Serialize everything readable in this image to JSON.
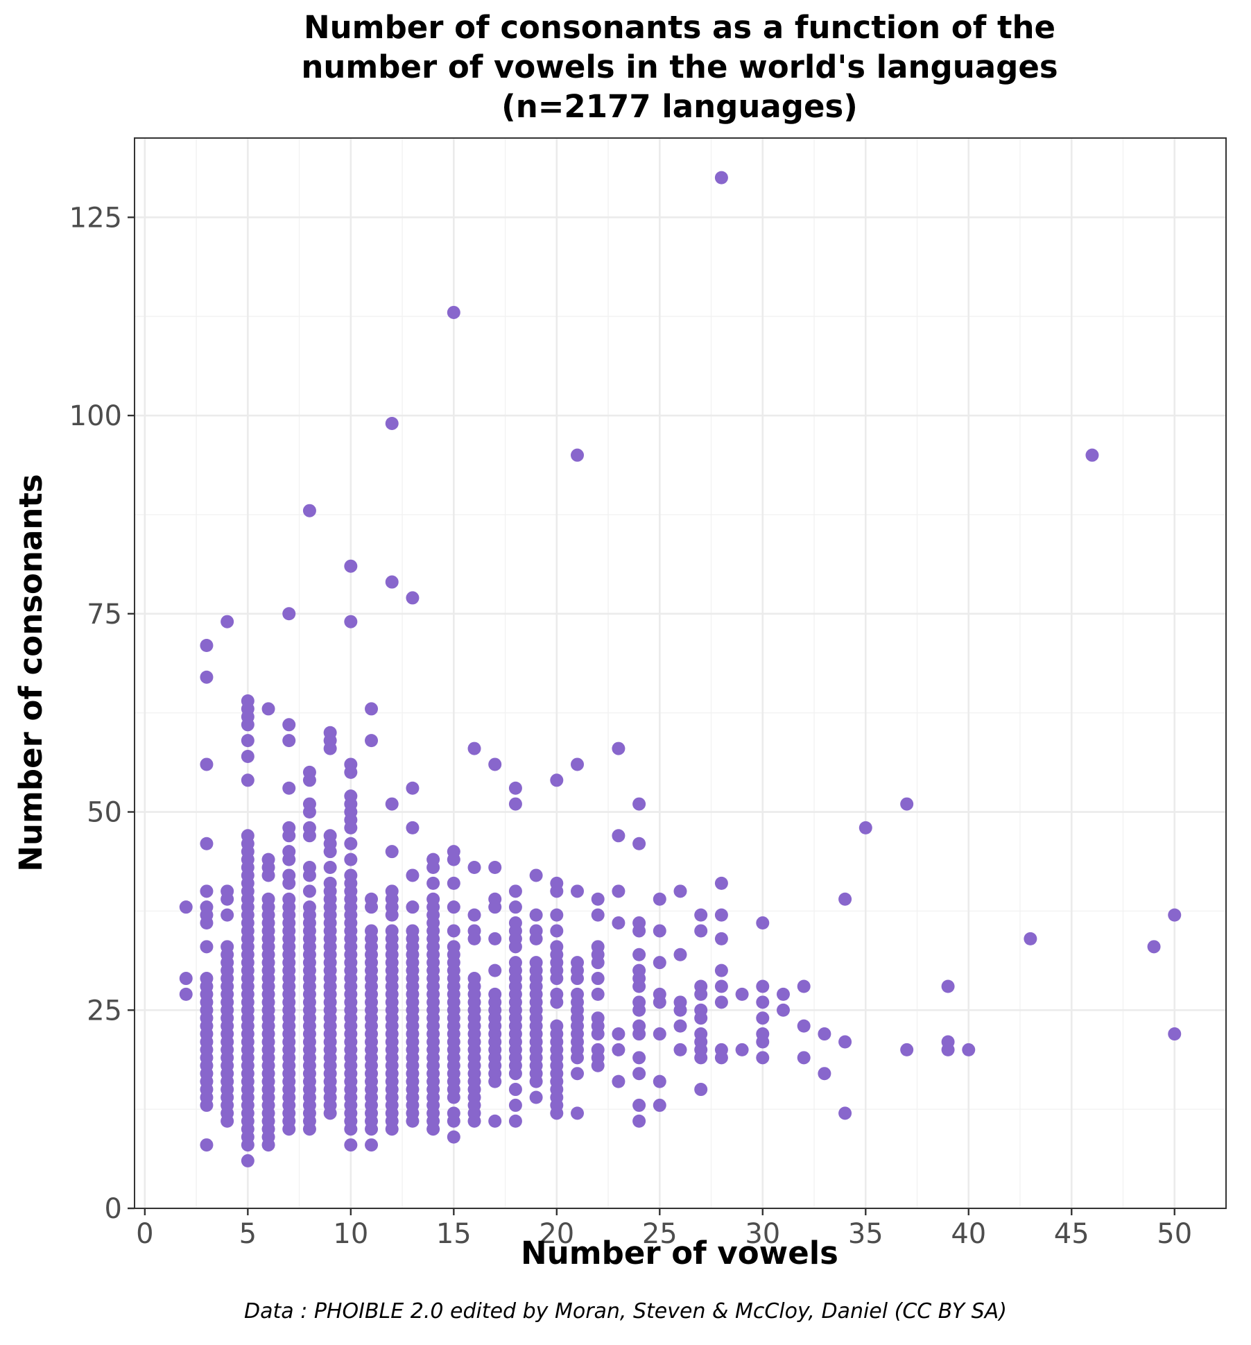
{
  "chart_data": {
    "type": "scatter",
    "title_lines": [
      "Number of consonants as a function of the",
      "number of vowels in the world's languages",
      "(n=2177 languages)"
    ],
    "xlabel": "Number of vowels",
    "ylabel": "Number of consonants",
    "caption": "Data : PHOIBLE 2.0 edited by Moran, Steven & McCloy, Daniel (CC BY SA)",
    "xlim": [
      -0.5,
      52.5
    ],
    "ylim": [
      0,
      135
    ],
    "x_ticks": [
      0,
      5,
      10,
      15,
      20,
      25,
      30,
      35,
      40,
      45,
      50
    ],
    "x_tick_labels": [
      "0",
      "5",
      "10",
      "15",
      "20",
      "25",
      "30",
      "35",
      "40",
      "45",
      "50"
    ],
    "y_ticks": [
      0,
      25,
      50,
      75,
      100,
      125
    ],
    "y_tick_labels": [
      "0",
      "25",
      "50",
      "75",
      "100",
      "125"
    ],
    "grid": true,
    "point_color": "#8866cc",
    "ranges": [
      {
        "x": 3,
        "y_from": 13,
        "y_to": 29
      },
      {
        "x": 4,
        "y_from": 11,
        "y_to": 33
      },
      {
        "x": 5,
        "y_from": 8,
        "y_to": 47
      },
      {
        "x": 6,
        "y_from": 10,
        "y_to": 39
      },
      {
        "x": 7,
        "y_from": 10,
        "y_to": 39
      },
      {
        "x": 8,
        "y_from": 10,
        "y_to": 38
      },
      {
        "x": 9,
        "y_from": 12,
        "y_to": 40
      },
      {
        "x": 10,
        "y_from": 10,
        "y_to": 42
      },
      {
        "x": 11,
        "y_from": 10,
        "y_to": 35
      },
      {
        "x": 12,
        "y_from": 10,
        "y_to": 35
      },
      {
        "x": 13,
        "y_from": 12,
        "y_to": 35
      },
      {
        "x": 14,
        "y_from": 12,
        "y_to": 39
      },
      {
        "x": 15,
        "y_from": 14,
        "y_to": 33
      },
      {
        "x": 16,
        "y_from": 11,
        "y_to": 29
      },
      {
        "x": 17,
        "y_from": 16,
        "y_to": 27
      },
      {
        "x": 18,
        "y_from": 17,
        "y_to": 31
      },
      {
        "x": 19,
        "y_from": 16,
        "y_to": 31
      },
      {
        "x": 20,
        "y_from": 12,
        "y_to": 23
      },
      {
        "x": 21,
        "y_from": 19,
        "y_to": 27
      }
    ],
    "points": [
      {
        "x": 2,
        "y": 38
      },
      {
        "x": 2,
        "y": 29
      },
      {
        "x": 2,
        "y": 27
      },
      {
        "x": 3,
        "y": 71
      },
      {
        "x": 3,
        "y": 67
      },
      {
        "x": 3,
        "y": 56
      },
      {
        "x": 3,
        "y": 46
      },
      {
        "x": 3,
        "y": 40
      },
      {
        "x": 3,
        "y": 38
      },
      {
        "x": 3,
        "y": 37
      },
      {
        "x": 3,
        "y": 36
      },
      {
        "x": 3,
        "y": 33
      },
      {
        "x": 3,
        "y": 8
      },
      {
        "x": 4,
        "y": 74
      },
      {
        "x": 4,
        "y": 40
      },
      {
        "x": 4,
        "y": 39
      },
      {
        "x": 4,
        "y": 37
      },
      {
        "x": 5,
        "y": 64
      },
      {
        "x": 5,
        "y": 63
      },
      {
        "x": 5,
        "y": 62
      },
      {
        "x": 5,
        "y": 61
      },
      {
        "x": 5,
        "y": 59
      },
      {
        "x": 5,
        "y": 57
      },
      {
        "x": 5,
        "y": 54
      },
      {
        "x": 5,
        "y": 6
      },
      {
        "x": 6,
        "y": 63
      },
      {
        "x": 6,
        "y": 44
      },
      {
        "x": 6,
        "y": 43
      },
      {
        "x": 6,
        "y": 42
      },
      {
        "x": 6,
        "y": 9
      },
      {
        "x": 6,
        "y": 8
      },
      {
        "x": 7,
        "y": 75
      },
      {
        "x": 7,
        "y": 61
      },
      {
        "x": 7,
        "y": 59
      },
      {
        "x": 7,
        "y": 53
      },
      {
        "x": 7,
        "y": 48
      },
      {
        "x": 7,
        "y": 47
      },
      {
        "x": 7,
        "y": 45
      },
      {
        "x": 7,
        "y": 44
      },
      {
        "x": 7,
        "y": 42
      },
      {
        "x": 7,
        "y": 41
      },
      {
        "x": 8,
        "y": 88
      },
      {
        "x": 8,
        "y": 55
      },
      {
        "x": 8,
        "y": 54
      },
      {
        "x": 8,
        "y": 51
      },
      {
        "x": 8,
        "y": 50
      },
      {
        "x": 8,
        "y": 48
      },
      {
        "x": 8,
        "y": 47
      },
      {
        "x": 8,
        "y": 43
      },
      {
        "x": 8,
        "y": 42
      },
      {
        "x": 8,
        "y": 40
      },
      {
        "x": 9,
        "y": 60
      },
      {
        "x": 9,
        "y": 59
      },
      {
        "x": 9,
        "y": 58
      },
      {
        "x": 9,
        "y": 47
      },
      {
        "x": 9,
        "y": 46
      },
      {
        "x": 9,
        "y": 45
      },
      {
        "x": 9,
        "y": 43
      },
      {
        "x": 9,
        "y": 41
      },
      {
        "x": 10,
        "y": 81
      },
      {
        "x": 10,
        "y": 74
      },
      {
        "x": 10,
        "y": 56
      },
      {
        "x": 10,
        "y": 55
      },
      {
        "x": 10,
        "y": 52
      },
      {
        "x": 10,
        "y": 51
      },
      {
        "x": 10,
        "y": 50
      },
      {
        "x": 10,
        "y": 49
      },
      {
        "x": 10,
        "y": 48
      },
      {
        "x": 10,
        "y": 46
      },
      {
        "x": 10,
        "y": 44
      },
      {
        "x": 10,
        "y": 8
      },
      {
        "x": 11,
        "y": 63
      },
      {
        "x": 11,
        "y": 59
      },
      {
        "x": 11,
        "y": 39
      },
      {
        "x": 11,
        "y": 38
      },
      {
        "x": 11,
        "y": 8
      },
      {
        "x": 12,
        "y": 99
      },
      {
        "x": 12,
        "y": 79
      },
      {
        "x": 12,
        "y": 51
      },
      {
        "x": 12,
        "y": 45
      },
      {
        "x": 12,
        "y": 40
      },
      {
        "x": 12,
        "y": 39
      },
      {
        "x": 12,
        "y": 38
      },
      {
        "x": 12,
        "y": 37
      },
      {
        "x": 13,
        "y": 77
      },
      {
        "x": 13,
        "y": 53
      },
      {
        "x": 13,
        "y": 48
      },
      {
        "x": 13,
        "y": 42
      },
      {
        "x": 13,
        "y": 38
      },
      {
        "x": 13,
        "y": 11
      },
      {
        "x": 14,
        "y": 44
      },
      {
        "x": 14,
        "y": 43
      },
      {
        "x": 14,
        "y": 41
      },
      {
        "x": 14,
        "y": 11
      },
      {
        "x": 14,
        "y": 10
      },
      {
        "x": 15,
        "y": 113
      },
      {
        "x": 15,
        "y": 45
      },
      {
        "x": 15,
        "y": 44
      },
      {
        "x": 15,
        "y": 41
      },
      {
        "x": 15,
        "y": 38
      },
      {
        "x": 15,
        "y": 35
      },
      {
        "x": 15,
        "y": 12
      },
      {
        "x": 15,
        "y": 11
      },
      {
        "x": 15,
        "y": 9
      },
      {
        "x": 16,
        "y": 58
      },
      {
        "x": 16,
        "y": 43
      },
      {
        "x": 16,
        "y": 37
      },
      {
        "x": 16,
        "y": 35
      },
      {
        "x": 16,
        "y": 34
      },
      {
        "x": 17,
        "y": 56
      },
      {
        "x": 17,
        "y": 43
      },
      {
        "x": 17,
        "y": 39
      },
      {
        "x": 17,
        "y": 38
      },
      {
        "x": 17,
        "y": 34
      },
      {
        "x": 17,
        "y": 30
      },
      {
        "x": 17,
        "y": 11
      },
      {
        "x": 18,
        "y": 53
      },
      {
        "x": 18,
        "y": 51
      },
      {
        "x": 18,
        "y": 40
      },
      {
        "x": 18,
        "y": 38
      },
      {
        "x": 18,
        "y": 36
      },
      {
        "x": 18,
        "y": 35
      },
      {
        "x": 18,
        "y": 34
      },
      {
        "x": 18,
        "y": 33
      },
      {
        "x": 18,
        "y": 15
      },
      {
        "x": 18,
        "y": 13
      },
      {
        "x": 18,
        "y": 11
      },
      {
        "x": 19,
        "y": 42
      },
      {
        "x": 19,
        "y": 37
      },
      {
        "x": 19,
        "y": 35
      },
      {
        "x": 19,
        "y": 34
      },
      {
        "x": 19,
        "y": 14
      },
      {
        "x": 20,
        "y": 54
      },
      {
        "x": 20,
        "y": 41
      },
      {
        "x": 20,
        "y": 40
      },
      {
        "x": 20,
        "y": 37
      },
      {
        "x": 20,
        "y": 35
      },
      {
        "x": 20,
        "y": 33
      },
      {
        "x": 20,
        "y": 32
      },
      {
        "x": 20,
        "y": 31
      },
      {
        "x": 20,
        "y": 30
      },
      {
        "x": 20,
        "y": 29
      },
      {
        "x": 20,
        "y": 27
      },
      {
        "x": 20,
        "y": 26
      },
      {
        "x": 21,
        "y": 95
      },
      {
        "x": 21,
        "y": 56
      },
      {
        "x": 21,
        "y": 40
      },
      {
        "x": 21,
        "y": 31
      },
      {
        "x": 21,
        "y": 30
      },
      {
        "x": 21,
        "y": 29
      },
      {
        "x": 21,
        "y": 17
      },
      {
        "x": 21,
        "y": 12
      },
      {
        "x": 22,
        "y": 39
      },
      {
        "x": 22,
        "y": 37
      },
      {
        "x": 22,
        "y": 33
      },
      {
        "x": 22,
        "y": 32
      },
      {
        "x": 22,
        "y": 31
      },
      {
        "x": 22,
        "y": 29
      },
      {
        "x": 22,
        "y": 27
      },
      {
        "x": 22,
        "y": 24
      },
      {
        "x": 22,
        "y": 23
      },
      {
        "x": 22,
        "y": 22
      },
      {
        "x": 22,
        "y": 20
      },
      {
        "x": 22,
        "y": 19
      },
      {
        "x": 22,
        "y": 18
      },
      {
        "x": 23,
        "y": 58
      },
      {
        "x": 23,
        "y": 47
      },
      {
        "x": 23,
        "y": 40
      },
      {
        "x": 23,
        "y": 36
      },
      {
        "x": 23,
        "y": 22
      },
      {
        "x": 23,
        "y": 20
      },
      {
        "x": 23,
        "y": 16
      },
      {
        "x": 24,
        "y": 51
      },
      {
        "x": 24,
        "y": 46
      },
      {
        "x": 24,
        "y": 36
      },
      {
        "x": 24,
        "y": 35
      },
      {
        "x": 24,
        "y": 32
      },
      {
        "x": 24,
        "y": 30
      },
      {
        "x": 24,
        "y": 29
      },
      {
        "x": 24,
        "y": 28
      },
      {
        "x": 24,
        "y": 26
      },
      {
        "x": 24,
        "y": 25
      },
      {
        "x": 24,
        "y": 23
      },
      {
        "x": 24,
        "y": 22
      },
      {
        "x": 24,
        "y": 19
      },
      {
        "x": 24,
        "y": 17
      },
      {
        "x": 24,
        "y": 13
      },
      {
        "x": 24,
        "y": 11
      },
      {
        "x": 25,
        "y": 39
      },
      {
        "x": 25,
        "y": 35
      },
      {
        "x": 25,
        "y": 31
      },
      {
        "x": 25,
        "y": 27
      },
      {
        "x": 25,
        "y": 26
      },
      {
        "x": 25,
        "y": 22
      },
      {
        "x": 25,
        "y": 16
      },
      {
        "x": 25,
        "y": 13
      },
      {
        "x": 26,
        "y": 40
      },
      {
        "x": 26,
        "y": 32
      },
      {
        "x": 26,
        "y": 26
      },
      {
        "x": 26,
        "y": 25
      },
      {
        "x": 26,
        "y": 23
      },
      {
        "x": 26,
        "y": 20
      },
      {
        "x": 27,
        "y": 37
      },
      {
        "x": 27,
        "y": 35
      },
      {
        "x": 27,
        "y": 28
      },
      {
        "x": 27,
        "y": 27
      },
      {
        "x": 27,
        "y": 25
      },
      {
        "x": 27,
        "y": 24
      },
      {
        "x": 27,
        "y": 22
      },
      {
        "x": 27,
        "y": 21
      },
      {
        "x": 27,
        "y": 20
      },
      {
        "x": 27,
        "y": 19
      },
      {
        "x": 27,
        "y": 15
      },
      {
        "x": 28,
        "y": 130
      },
      {
        "x": 28,
        "y": 41
      },
      {
        "x": 28,
        "y": 37
      },
      {
        "x": 28,
        "y": 34
      },
      {
        "x": 28,
        "y": 30
      },
      {
        "x": 28,
        "y": 28
      },
      {
        "x": 28,
        "y": 26
      },
      {
        "x": 28,
        "y": 20
      },
      {
        "x": 28,
        "y": 19
      },
      {
        "x": 29,
        "y": 27
      },
      {
        "x": 29,
        "y": 20
      },
      {
        "x": 30,
        "y": 36
      },
      {
        "x": 30,
        "y": 28
      },
      {
        "x": 30,
        "y": 26
      },
      {
        "x": 30,
        "y": 24
      },
      {
        "x": 30,
        "y": 22
      },
      {
        "x": 30,
        "y": 21
      },
      {
        "x": 30,
        "y": 19
      },
      {
        "x": 31,
        "y": 27
      },
      {
        "x": 31,
        "y": 25
      },
      {
        "x": 32,
        "y": 28
      },
      {
        "x": 32,
        "y": 23
      },
      {
        "x": 32,
        "y": 19
      },
      {
        "x": 33,
        "y": 22
      },
      {
        "x": 33,
        "y": 17
      },
      {
        "x": 34,
        "y": 39
      },
      {
        "x": 34,
        "y": 21
      },
      {
        "x": 34,
        "y": 12
      },
      {
        "x": 35,
        "y": 48
      },
      {
        "x": 37,
        "y": 51
      },
      {
        "x": 37,
        "y": 20
      },
      {
        "x": 39,
        "y": 28
      },
      {
        "x": 39,
        "y": 21
      },
      {
        "x": 39,
        "y": 20
      },
      {
        "x": 40,
        "y": 20
      },
      {
        "x": 43,
        "y": 34
      },
      {
        "x": 46,
        "y": 95
      },
      {
        "x": 49,
        "y": 33
      },
      {
        "x": 50,
        "y": 37
      },
      {
        "x": 50,
        "y": 22
      }
    ]
  }
}
